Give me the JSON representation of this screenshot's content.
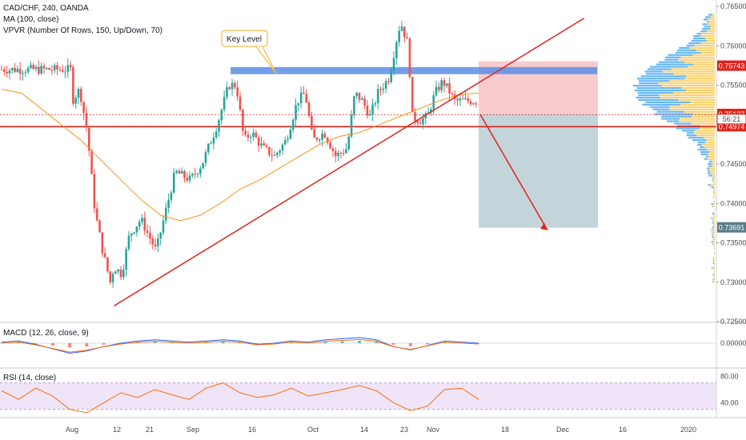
{
  "header": {
    "symbol_line": "CAD/CHF, 240, OANDA",
    "ma_line": "MA (100, close)",
    "vpvr_line": "VPVR (Number Of Rows, 150, Up/Down, 70)"
  },
  "annotation": {
    "key_level": "Key Level"
  },
  "panes": {
    "macd_label": "MACD (12, 26, close, 9)",
    "rsi_label": "RSI (14, close)"
  },
  "colors": {
    "up": "#26a69a",
    "down": "#ef5350",
    "ma": "#f7931a",
    "trend": "#e0231b",
    "zone": "#5b8ee6",
    "vp_up": "#42a5f5",
    "vp_down": "#f9c74f",
    "rsi_band": "#e9d8f7"
  },
  "chart_data": [
    {
      "type": "candlestick",
      "title": "CAD/CHF, 240, OANDA",
      "ylim": [
        0.725,
        0.765
      ],
      "y_ticks": [
        "0.76500",
        "0.76000",
        "0.75500",
        "0.75000",
        "0.74500",
        "0.74000",
        "0.73500",
        "0.73000",
        "0.72500"
      ],
      "x_ticks": [
        "Aug",
        "12",
        "21",
        "Sep",
        "16",
        "Oct",
        "14",
        "23",
        "Nov",
        "18",
        "Dec",
        "16",
        "2020"
      ],
      "price_tags": [
        {
          "text": "0.75743",
          "value": 0.75743,
          "color": "#e0231b"
        },
        {
          "text": "0.75130",
          "value": 0.7513,
          "color": "#e0231b"
        },
        {
          "text": "0.75127",
          "value": 0.75127,
          "color": "#e0231b"
        },
        {
          "text": "0.74974",
          "value": 0.74974,
          "color": "#e0231b"
        },
        {
          "text": "0.73691",
          "value": 0.73691,
          "color": "#5b7c8a"
        }
      ],
      "countdown_tag": "56:21",
      "close_series": [
        {
          "d": "Jul 29",
          "v": 0.757
        },
        {
          "d": "Aug 1",
          "v": 0.753
        },
        {
          "d": "Aug 3",
          "v": 0.7545
        },
        {
          "d": "Aug 5",
          "v": 0.749
        },
        {
          "d": "Aug 7",
          "v": 0.739
        },
        {
          "d": "Aug 9",
          "v": 0.734
        },
        {
          "d": "Aug 11",
          "v": 0.73
        },
        {
          "d": "Aug 12",
          "v": 0.732
        },
        {
          "d": "Aug 14",
          "v": 0.731
        },
        {
          "d": "Aug 16",
          "v": 0.736
        },
        {
          "d": "Aug 19",
          "v": 0.738
        },
        {
          "d": "Aug 21",
          "v": 0.736
        },
        {
          "d": "Aug 23",
          "v": 0.734
        },
        {
          "d": "Aug 26",
          "v": 0.74
        },
        {
          "d": "Aug 28",
          "v": 0.744
        },
        {
          "d": "Sep 1",
          "v": 0.743
        },
        {
          "d": "Sep 4",
          "v": 0.745
        },
        {
          "d": "Sep 8",
          "v": 0.75
        },
        {
          "d": "Sep 11",
          "v": 0.755
        },
        {
          "d": "Sep 13",
          "v": 0.755
        },
        {
          "d": "Sep 15",
          "v": 0.748
        },
        {
          "d": "Sep 17",
          "v": 0.749
        },
        {
          "d": "Sep 20",
          "v": 0.747
        },
        {
          "d": "Sep 23",
          "v": 0.746
        },
        {
          "d": "Sep 26",
          "v": 0.748
        },
        {
          "d": "Sep 29",
          "v": 0.753
        },
        {
          "d": "Oct 1",
          "v": 0.754
        },
        {
          "d": "Oct 3",
          "v": 0.748
        },
        {
          "d": "Oct 6",
          "v": 0.749
        },
        {
          "d": "Oct 9",
          "v": 0.746
        },
        {
          "d": "Oct 12",
          "v": 0.747
        },
        {
          "d": "Oct 14",
          "v": 0.754
        },
        {
          "d": "Oct 16",
          "v": 0.753
        },
        {
          "d": "Oct 18",
          "v": 0.751
        },
        {
          "d": "Oct 20",
          "v": 0.754
        },
        {
          "d": "Oct 23",
          "v": 0.756
        },
        {
          "d": "Oct 25",
          "v": 0.761
        },
        {
          "d": "Oct 26",
          "v": 0.763
        },
        {
          "d": "Oct 28",
          "v": 0.76
        },
        {
          "d": "Oct 29",
          "v": 0.751
        },
        {
          "d": "Oct 31",
          "v": 0.7505
        },
        {
          "d": "Nov 2",
          "v": 0.751
        },
        {
          "d": "Nov 4",
          "v": 0.754
        },
        {
          "d": "Nov 6",
          "v": 0.7555
        },
        {
          "d": "Nov 8",
          "v": 0.754
        },
        {
          "d": "Nov 9",
          "v": 0.753
        }
      ],
      "ma_series_values": [
        0.7545,
        0.754,
        0.752,
        0.75,
        0.748,
        0.7455,
        0.743,
        0.7405,
        0.7385,
        0.7378,
        0.7385,
        0.74,
        0.7418,
        0.743,
        0.7445,
        0.746,
        0.7475,
        0.7485,
        0.749,
        0.75,
        0.751,
        0.752,
        0.753,
        0.7538,
        0.754
      ],
      "key_level_zone": [
        0.7564,
        0.7573
      ],
      "trendline": {
        "from": {
          "d": "Aug 12",
          "v": 0.727
        },
        "to": {
          "d": "Dec 13",
          "v": 0.7635
        }
      },
      "horizontal_lines": [
        0.75127,
        0.74974
      ],
      "short_position": {
        "entry": 0.7513,
        "stop": 0.75743,
        "target": 0.73691
      }
    },
    {
      "type": "line",
      "title": "MACD (12, 26, close, 9)",
      "y_ticks": [
        "0.00000"
      ],
      "series": [
        {
          "values": [
            0.1,
            0.2,
            -0.1,
            -0.5,
            -0.9,
            -0.7,
            -0.3,
            0.0,
            0.2,
            0.3,
            0.2,
            0.1,
            0.2,
            0.3,
            0.2,
            -0.1,
            0.0,
            0.2,
            0.1,
            0.3,
            0.4,
            0.5,
            0.3,
            -0.3,
            -0.6,
            -0.2,
            0.2,
            0.1,
            0.0
          ]
        }
      ]
    },
    {
      "type": "line",
      "title": "RSI (14, close)",
      "y_ticks": [
        "80.00",
        "40.00"
      ],
      "series": [
        {
          "values": [
            58,
            45,
            62,
            50,
            30,
            25,
            40,
            55,
            48,
            60,
            52,
            45,
            62,
            70,
            55,
            48,
            52,
            62,
            50,
            55,
            60,
            66,
            58,
            40,
            28,
            35,
            60,
            62,
            45
          ]
        }
      ]
    }
  ]
}
